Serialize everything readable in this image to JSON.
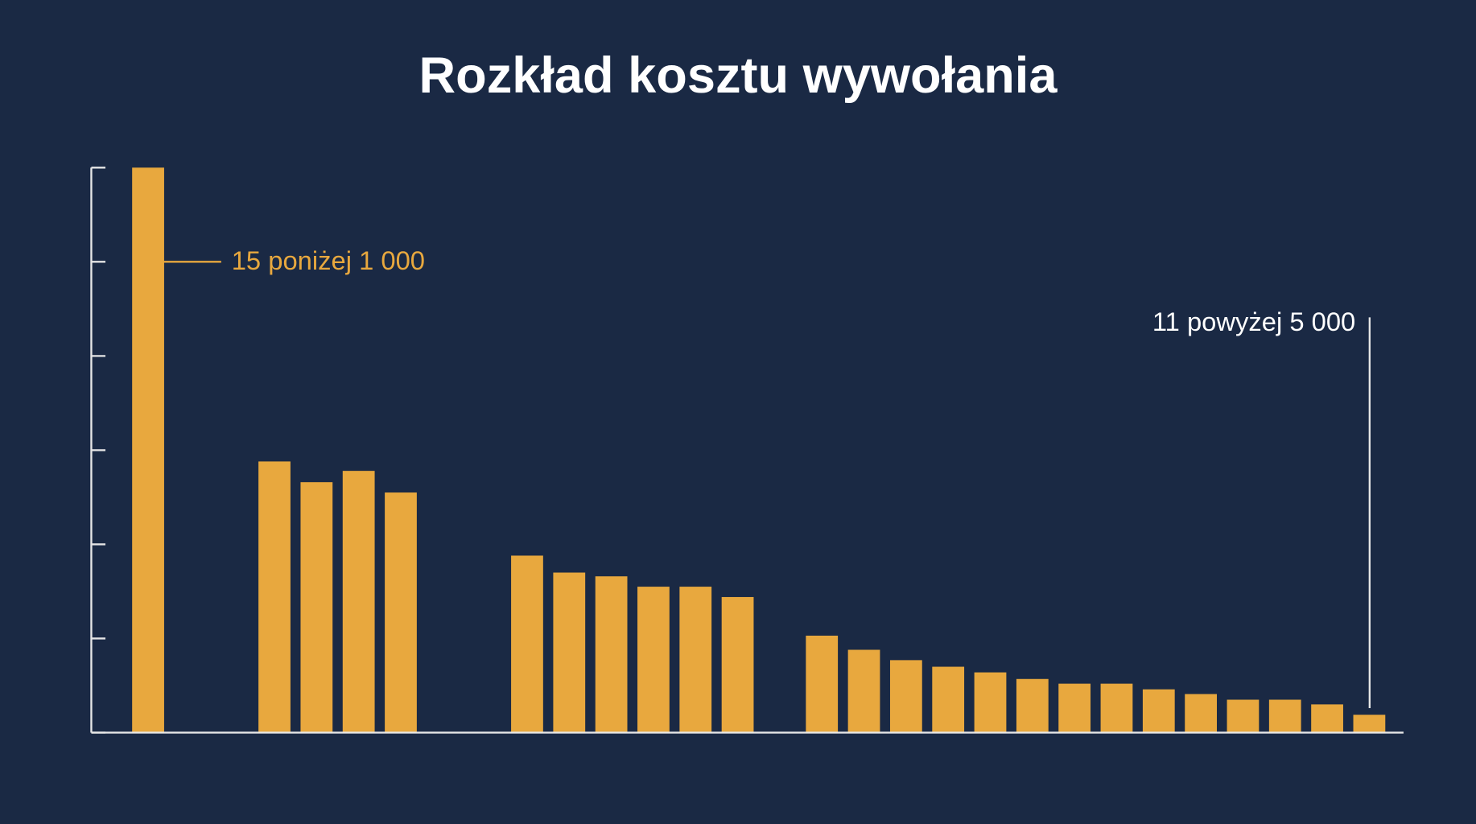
{
  "chart_data": {
    "type": "bar",
    "title": "Rozkład kosztu wywołania",
    "categories": [
      null,
      null,
      null,
      null,
      null,
      null,
      null,
      null,
      null,
      null,
      null,
      null,
      null,
      null,
      null,
      null,
      null,
      null,
      null,
      null,
      null,
      null,
      null,
      null,
      null,
      null,
      null,
      null,
      null,
      null
    ],
    "values": [
      6.0,
      null,
      null,
      2.88,
      2.66,
      2.78,
      2.55,
      null,
      null,
      1.88,
      1.7,
      1.66,
      1.55,
      1.55,
      1.44,
      null,
      1.03,
      0.88,
      0.77,
      0.7,
      0.64,
      0.57,
      0.52,
      0.52,
      0.46,
      0.41,
      0.35,
      0.35,
      0.3,
      0.19
    ],
    "color": "#e8a83e",
    "ylim": [
      0,
      6
    ],
    "yticks": [
      0,
      1,
      2,
      3,
      4,
      5,
      6
    ],
    "annotations": [
      "15 poniżej 1 000",
      "11 powyżej 5 000"
    ]
  }
}
